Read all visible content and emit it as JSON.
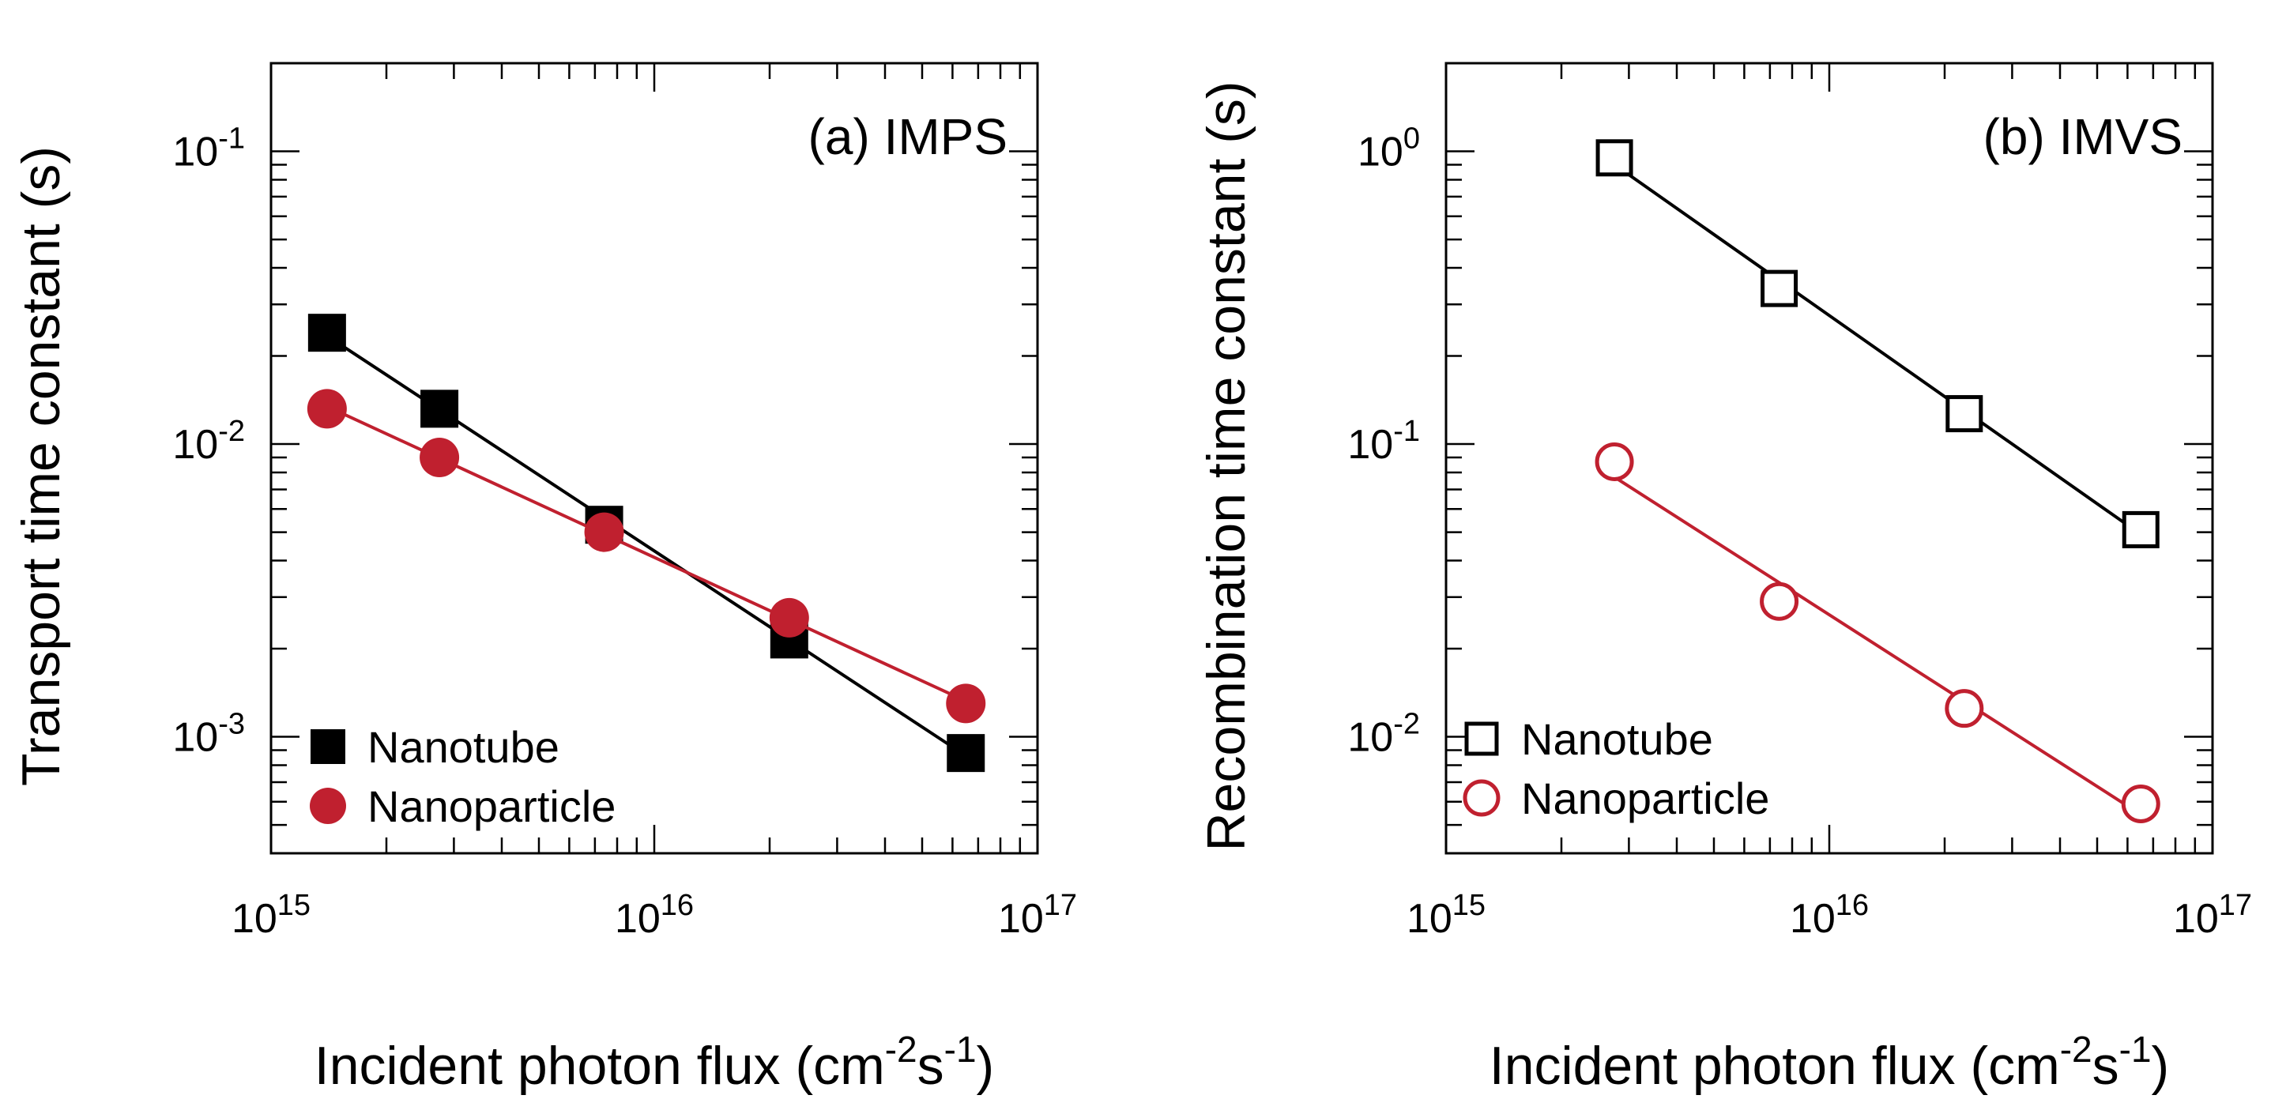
{
  "colors": {
    "nanotube": "#000000",
    "nanoparticle": "#c0202f",
    "axis": "#000000"
  },
  "chart_data": [
    {
      "type": "scatter",
      "panel": "a",
      "title": "(a) IMPS",
      "xlabel": "Incident photon flux (cm",
      "xlabel_sup1": "-2",
      "xlabel_mid": "s",
      "xlabel_sup2": "-1",
      "xlabel_end": ")",
      "ylabel": "Transport time constant (s)",
      "xscale": "log",
      "yscale": "log",
      "xlim": [
        1000000000000000.0,
        1e+17
      ],
      "ylim": [
        0.0004,
        0.2
      ],
      "x_ticks": [
        {
          "value": 1000000000000000.0,
          "base": "10",
          "exp": "15"
        },
        {
          "value": 1e+16,
          "base": "10",
          "exp": "16"
        },
        {
          "value": 1e+17,
          "base": "10",
          "exp": "17"
        }
      ],
      "y_ticks": [
        {
          "value": 0.001,
          "base": "10",
          "exp": "-3"
        },
        {
          "value": 0.01,
          "base": "10",
          "exp": "-2"
        },
        {
          "value": 0.1,
          "base": "10",
          "exp": "-1"
        }
      ],
      "legend_placement": "bottom-left",
      "series": [
        {
          "name": "Nanotube",
          "marker": "square",
          "filled": true,
          "color": "#000000",
          "x": [
            1400000000000000.0,
            2750000000000000.0,
            7400000000000000.0,
            2.25e+16,
            6.5e+16
          ],
          "y": [
            0.024,
            0.0132,
            0.0053,
            0.00215,
            0.00088
          ]
        },
        {
          "name": "Nanoparticle",
          "marker": "circle",
          "filled": true,
          "color": "#c0202f",
          "x": [
            1400000000000000.0,
            2750000000000000.0,
            7400000000000000.0,
            2.25e+16,
            6.5e+16
          ],
          "y": [
            0.0132,
            0.009,
            0.005,
            0.00255,
            0.0013
          ]
        }
      ]
    },
    {
      "type": "scatter",
      "panel": "b",
      "title": "(b) IMVS",
      "xlabel": "Incident photon flux (cm",
      "xlabel_sup1": "-2",
      "xlabel_mid": "s",
      "xlabel_sup2": "-1",
      "xlabel_end": ")",
      "ylabel": "Recombination time constant (s)",
      "xscale": "log",
      "yscale": "log",
      "xlim": [
        1000000000000000.0,
        1e+17
      ],
      "ylim": [
        0.004,
        2.0
      ],
      "x_ticks": [
        {
          "value": 1000000000000000.0,
          "base": "10",
          "exp": "15"
        },
        {
          "value": 1e+16,
          "base": "10",
          "exp": "16"
        },
        {
          "value": 1e+17,
          "base": "10",
          "exp": "17"
        }
      ],
      "y_ticks": [
        {
          "value": 0.01,
          "base": "10",
          "exp": "-2"
        },
        {
          "value": 0.1,
          "base": "10",
          "exp": "-1"
        },
        {
          "value": 1,
          "base": "10",
          "exp": "0"
        }
      ],
      "legend_placement": "bottom-left",
      "series": [
        {
          "name": "Nanotube",
          "marker": "square",
          "filled": false,
          "color": "#000000",
          "x": [
            2750000000000000.0,
            7400000000000000.0,
            2.25e+16,
            6.5e+16
          ],
          "y": [
            0.95,
            0.34,
            0.127,
            0.051
          ]
        },
        {
          "name": "Nanoparticle",
          "marker": "circle",
          "filled": false,
          "color": "#c0202f",
          "x": [
            2750000000000000.0,
            7400000000000000.0,
            2.25e+16,
            6.5e+16
          ],
          "y": [
            0.087,
            0.029,
            0.0125,
            0.0059
          ]
        }
      ]
    }
  ]
}
